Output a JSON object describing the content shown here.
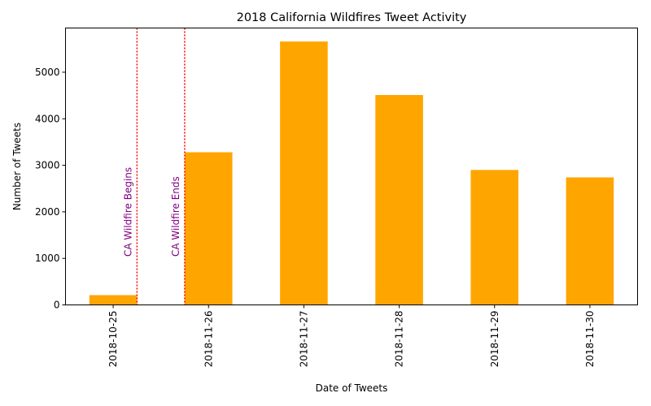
{
  "chart_data": {
    "type": "bar",
    "title": "2018 California Wildfires Tweet Activity",
    "xlabel": "Date of Tweets",
    "ylabel": "Number of Tweets",
    "categories": [
      "2018-10-25",
      "2018-11-26",
      "2018-11-27",
      "2018-11-28",
      "2018-11-29",
      "2018-11-30"
    ],
    "values": [
      210,
      3280,
      5660,
      4510,
      2900,
      2740
    ],
    "ylim": [
      0,
      5950
    ],
    "yticks": [
      0,
      1000,
      2000,
      3000,
      4000,
      5000
    ],
    "grid": false,
    "bar_color": "#ffa500",
    "annotations": [
      {
        "label": "CA Wildfire Begins",
        "color": "#800080",
        "line_color": "#ff0000",
        "line_style": "dotted"
      },
      {
        "label": "CA Wildfire Ends",
        "color": "#800080",
        "line_color": "#ff0000",
        "line_style": "dotted"
      }
    ]
  }
}
